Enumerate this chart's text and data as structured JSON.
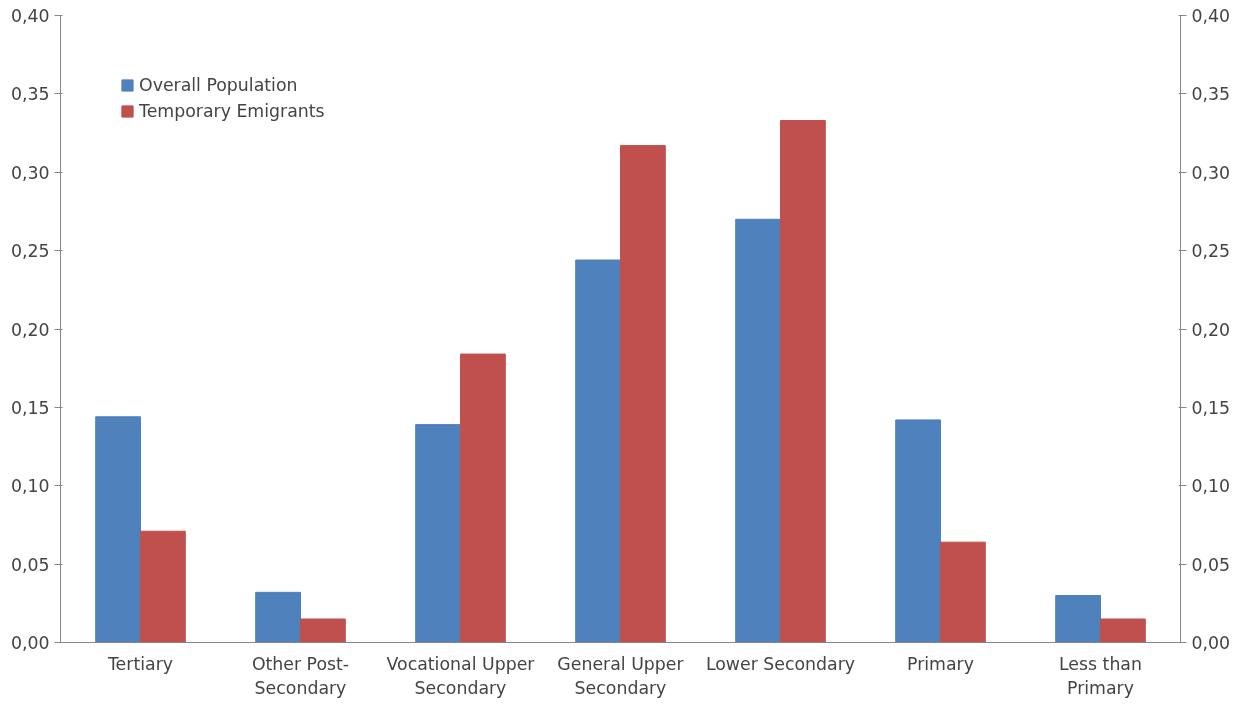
{
  "chart_data": {
    "type": "bar",
    "categories": [
      "Tertiary",
      "Other Post-Secondary",
      "Vocational Upper Secondary",
      "General Upper Secondary",
      "Lower Secondary",
      "Primary",
      "Less than Primary"
    ],
    "series": [
      {
        "name": "Overall Population",
        "color": "#4f81bd",
        "values": [
          0.144,
          0.032,
          0.139,
          0.244,
          0.27,
          0.142,
          0.03
        ]
      },
      {
        "name": "Temporary Emigrants",
        "color": "#c0504d",
        "values": [
          0.071,
          0.015,
          0.184,
          0.317,
          0.333,
          0.064,
          0.015
        ]
      }
    ],
    "ylim": [
      0,
      0.4
    ],
    "yticks": [
      {
        "value": 0,
        "label": "0,00"
      },
      {
        "value": 0.05,
        "label": "0,05"
      },
      {
        "value": 0.1,
        "label": "0,10"
      },
      {
        "value": 0.15,
        "label": "0,15"
      },
      {
        "value": 0.2,
        "label": "0,20"
      },
      {
        "value": 0.25,
        "label": "0,25"
      },
      {
        "value": 0.3,
        "label": "0,30"
      },
      {
        "value": 0.35,
        "label": "0,35"
      },
      {
        "value": 0.4,
        "label": "0,40"
      }
    ],
    "y2lim": [
      0,
      0.4
    ],
    "y2ticks": [
      {
        "value": 0,
        "label": "0,00"
      },
      {
        "value": 0.05,
        "label": "0,05"
      },
      {
        "value": 0.1,
        "label": "0,10"
      },
      {
        "value": 0.15,
        "label": "0,15"
      },
      {
        "value": 0.2,
        "label": "0,20"
      },
      {
        "value": 0.25,
        "label": "0,25"
      },
      {
        "value": 0.3,
        "label": "0,30"
      },
      {
        "value": 0.35,
        "label": "0,35"
      },
      {
        "value": 0.4,
        "label": "0,40"
      }
    ],
    "legend": "top left",
    "grid": false
  }
}
